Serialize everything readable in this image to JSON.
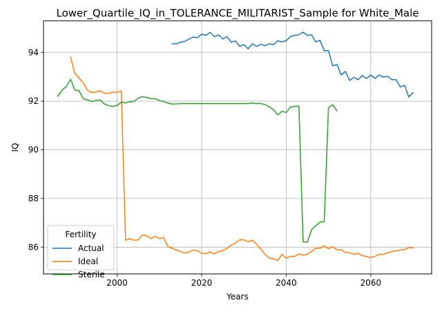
{
  "chart_data": {
    "type": "line",
    "title": "Lower_Quartile_IQ_in_TOLERANCE_MILITARIST_Sample for White_Male",
    "xlabel": "Years",
    "ylabel": "IQ",
    "xlim": [
      1982.6,
      2074.4
    ],
    "ylim": [
      84.9,
      95.3
    ],
    "xticks": [
      2000,
      2020,
      2040,
      2060
    ],
    "yticks": [
      86,
      88,
      90,
      92,
      94
    ],
    "grid": true,
    "legend": {
      "title": "Fertility",
      "placement": "lower-left"
    },
    "series": [
      {
        "name": "Actual",
        "color": "#1f77b4",
        "x": [
          2013,
          2014,
          2015,
          2016,
          2017,
          2018,
          2019,
          2020,
          2021,
          2022,
          2023,
          2024,
          2025,
          2026,
          2027,
          2028,
          2029,
          2030,
          2031,
          2032,
          2033,
          2034,
          2035,
          2036,
          2037,
          2038,
          2039,
          2040,
          2041,
          2042,
          2043,
          2044,
          2045,
          2046,
          2047,
          2048,
          2049,
          2050,
          2051,
          2052,
          2053,
          2054,
          2055,
          2056,
          2057,
          2058,
          2059,
          2060,
          2061,
          2062,
          2063,
          2064,
          2065,
          2066,
          2067,
          2068,
          2069,
          2070
        ],
        "y": [
          94.35,
          94.35,
          94.42,
          94.45,
          94.55,
          94.63,
          94.6,
          94.75,
          94.7,
          94.82,
          94.65,
          94.72,
          94.55,
          94.65,
          94.42,
          94.47,
          94.25,
          94.32,
          94.15,
          94.35,
          94.25,
          94.33,
          94.28,
          94.35,
          94.32,
          94.48,
          94.43,
          94.48,
          94.65,
          94.7,
          94.73,
          94.83,
          94.7,
          94.72,
          94.43,
          94.5,
          94.07,
          94.07,
          93.45,
          93.5,
          93.07,
          93.22,
          92.85,
          92.97,
          92.88,
          93.05,
          92.93,
          93.07,
          92.93,
          93.07,
          92.98,
          93.02,
          92.88,
          92.88,
          92.58,
          92.65,
          92.17,
          92.35
        ]
      },
      {
        "name": "Ideal",
        "color": "#ff7f0e",
        "x": [
          1989,
          1990,
          1991,
          1992,
          1993,
          1994,
          1995,
          1996,
          1997,
          1998,
          1999,
          2000,
          2001,
          2002,
          2003,
          2004,
          2005,
          2006,
          2007,
          2008,
          2009,
          2010,
          2011,
          2012,
          2013,
          2014,
          2015,
          2016,
          2017,
          2018,
          2019,
          2020,
          2021,
          2022,
          2023,
          2024,
          2025,
          2026,
          2027,
          2028,
          2029,
          2030,
          2031,
          2032,
          2033,
          2034,
          2035,
          2036,
          2037,
          2038,
          2039,
          2040,
          2041,
          2042,
          2043,
          2044,
          2045,
          2046,
          2047,
          2048,
          2049,
          2050,
          2051,
          2052,
          2053,
          2054,
          2055,
          2056,
          2057,
          2058,
          2059,
          2060,
          2061,
          2062,
          2063,
          2064,
          2065,
          2066,
          2067,
          2068,
          2069,
          2070
        ],
        "y": [
          93.8,
          93.15,
          92.95,
          92.75,
          92.45,
          92.35,
          92.37,
          92.42,
          92.32,
          92.32,
          92.37,
          92.35,
          92.42,
          86.28,
          86.35,
          86.28,
          86.3,
          86.5,
          86.47,
          86.35,
          86.45,
          86.35,
          86.4,
          86.02,
          85.95,
          85.88,
          85.82,
          85.75,
          85.8,
          85.88,
          85.85,
          85.75,
          85.73,
          85.8,
          85.72,
          85.82,
          85.85,
          85.95,
          86.08,
          86.17,
          86.3,
          86.3,
          86.22,
          86.28,
          86.12,
          85.92,
          85.7,
          85.55,
          85.52,
          85.45,
          85.7,
          85.55,
          85.62,
          85.62,
          85.72,
          85.67,
          85.7,
          85.83,
          85.95,
          85.95,
          86.05,
          85.93,
          86.02,
          85.88,
          85.9,
          85.78,
          85.77,
          85.7,
          85.75,
          85.65,
          85.62,
          85.57,
          85.62,
          85.7,
          85.7,
          85.77,
          85.82,
          85.85,
          85.88,
          85.9,
          85.98,
          85.97
        ]
      },
      {
        "name": "Sterile",
        "color": "#2ca02c",
        "x": [
          1986,
          1987,
          1988,
          1989,
          1990,
          1991,
          1992,
          1993,
          1994,
          1995,
          1996,
          1997,
          1998,
          1999,
          2000,
          2001,
          2002,
          2003,
          2004,
          2005,
          2006,
          2007,
          2008,
          2009,
          2010,
          2011,
          2012,
          2013,
          2014,
          2015,
          2016,
          2017,
          2018,
          2019,
          2020,
          2021,
          2022,
          2023,
          2024,
          2025,
          2026,
          2027,
          2028,
          2029,
          2030,
          2031,
          2032,
          2033,
          2034,
          2035,
          2036,
          2037,
          2038,
          2039,
          2040,
          2041,
          2042,
          2043,
          2044,
          2045,
          2046,
          2047,
          2048,
          2049,
          2050,
          2051,
          2052
        ],
        "y": [
          92.2,
          92.45,
          92.6,
          92.9,
          92.45,
          92.43,
          92.1,
          92.05,
          91.98,
          92.02,
          92.05,
          91.88,
          91.82,
          91.78,
          91.82,
          91.95,
          91.92,
          91.97,
          91.98,
          92.12,
          92.18,
          92.15,
          92.1,
          92.1,
          92.02,
          91.98,
          91.92,
          91.88,
          91.88,
          91.9,
          91.9,
          91.9,
          91.9,
          91.9,
          91.9,
          91.9,
          91.9,
          91.9,
          91.9,
          91.9,
          91.9,
          91.9,
          91.9,
          91.9,
          91.9,
          91.9,
          91.92,
          91.9,
          91.9,
          91.85,
          91.77,
          91.65,
          91.43,
          91.58,
          91.53,
          91.75,
          91.78,
          91.8,
          86.22,
          86.2,
          86.72,
          86.88,
          87.03,
          87.05,
          91.73,
          91.85,
          91.6
        ]
      }
    ]
  }
}
